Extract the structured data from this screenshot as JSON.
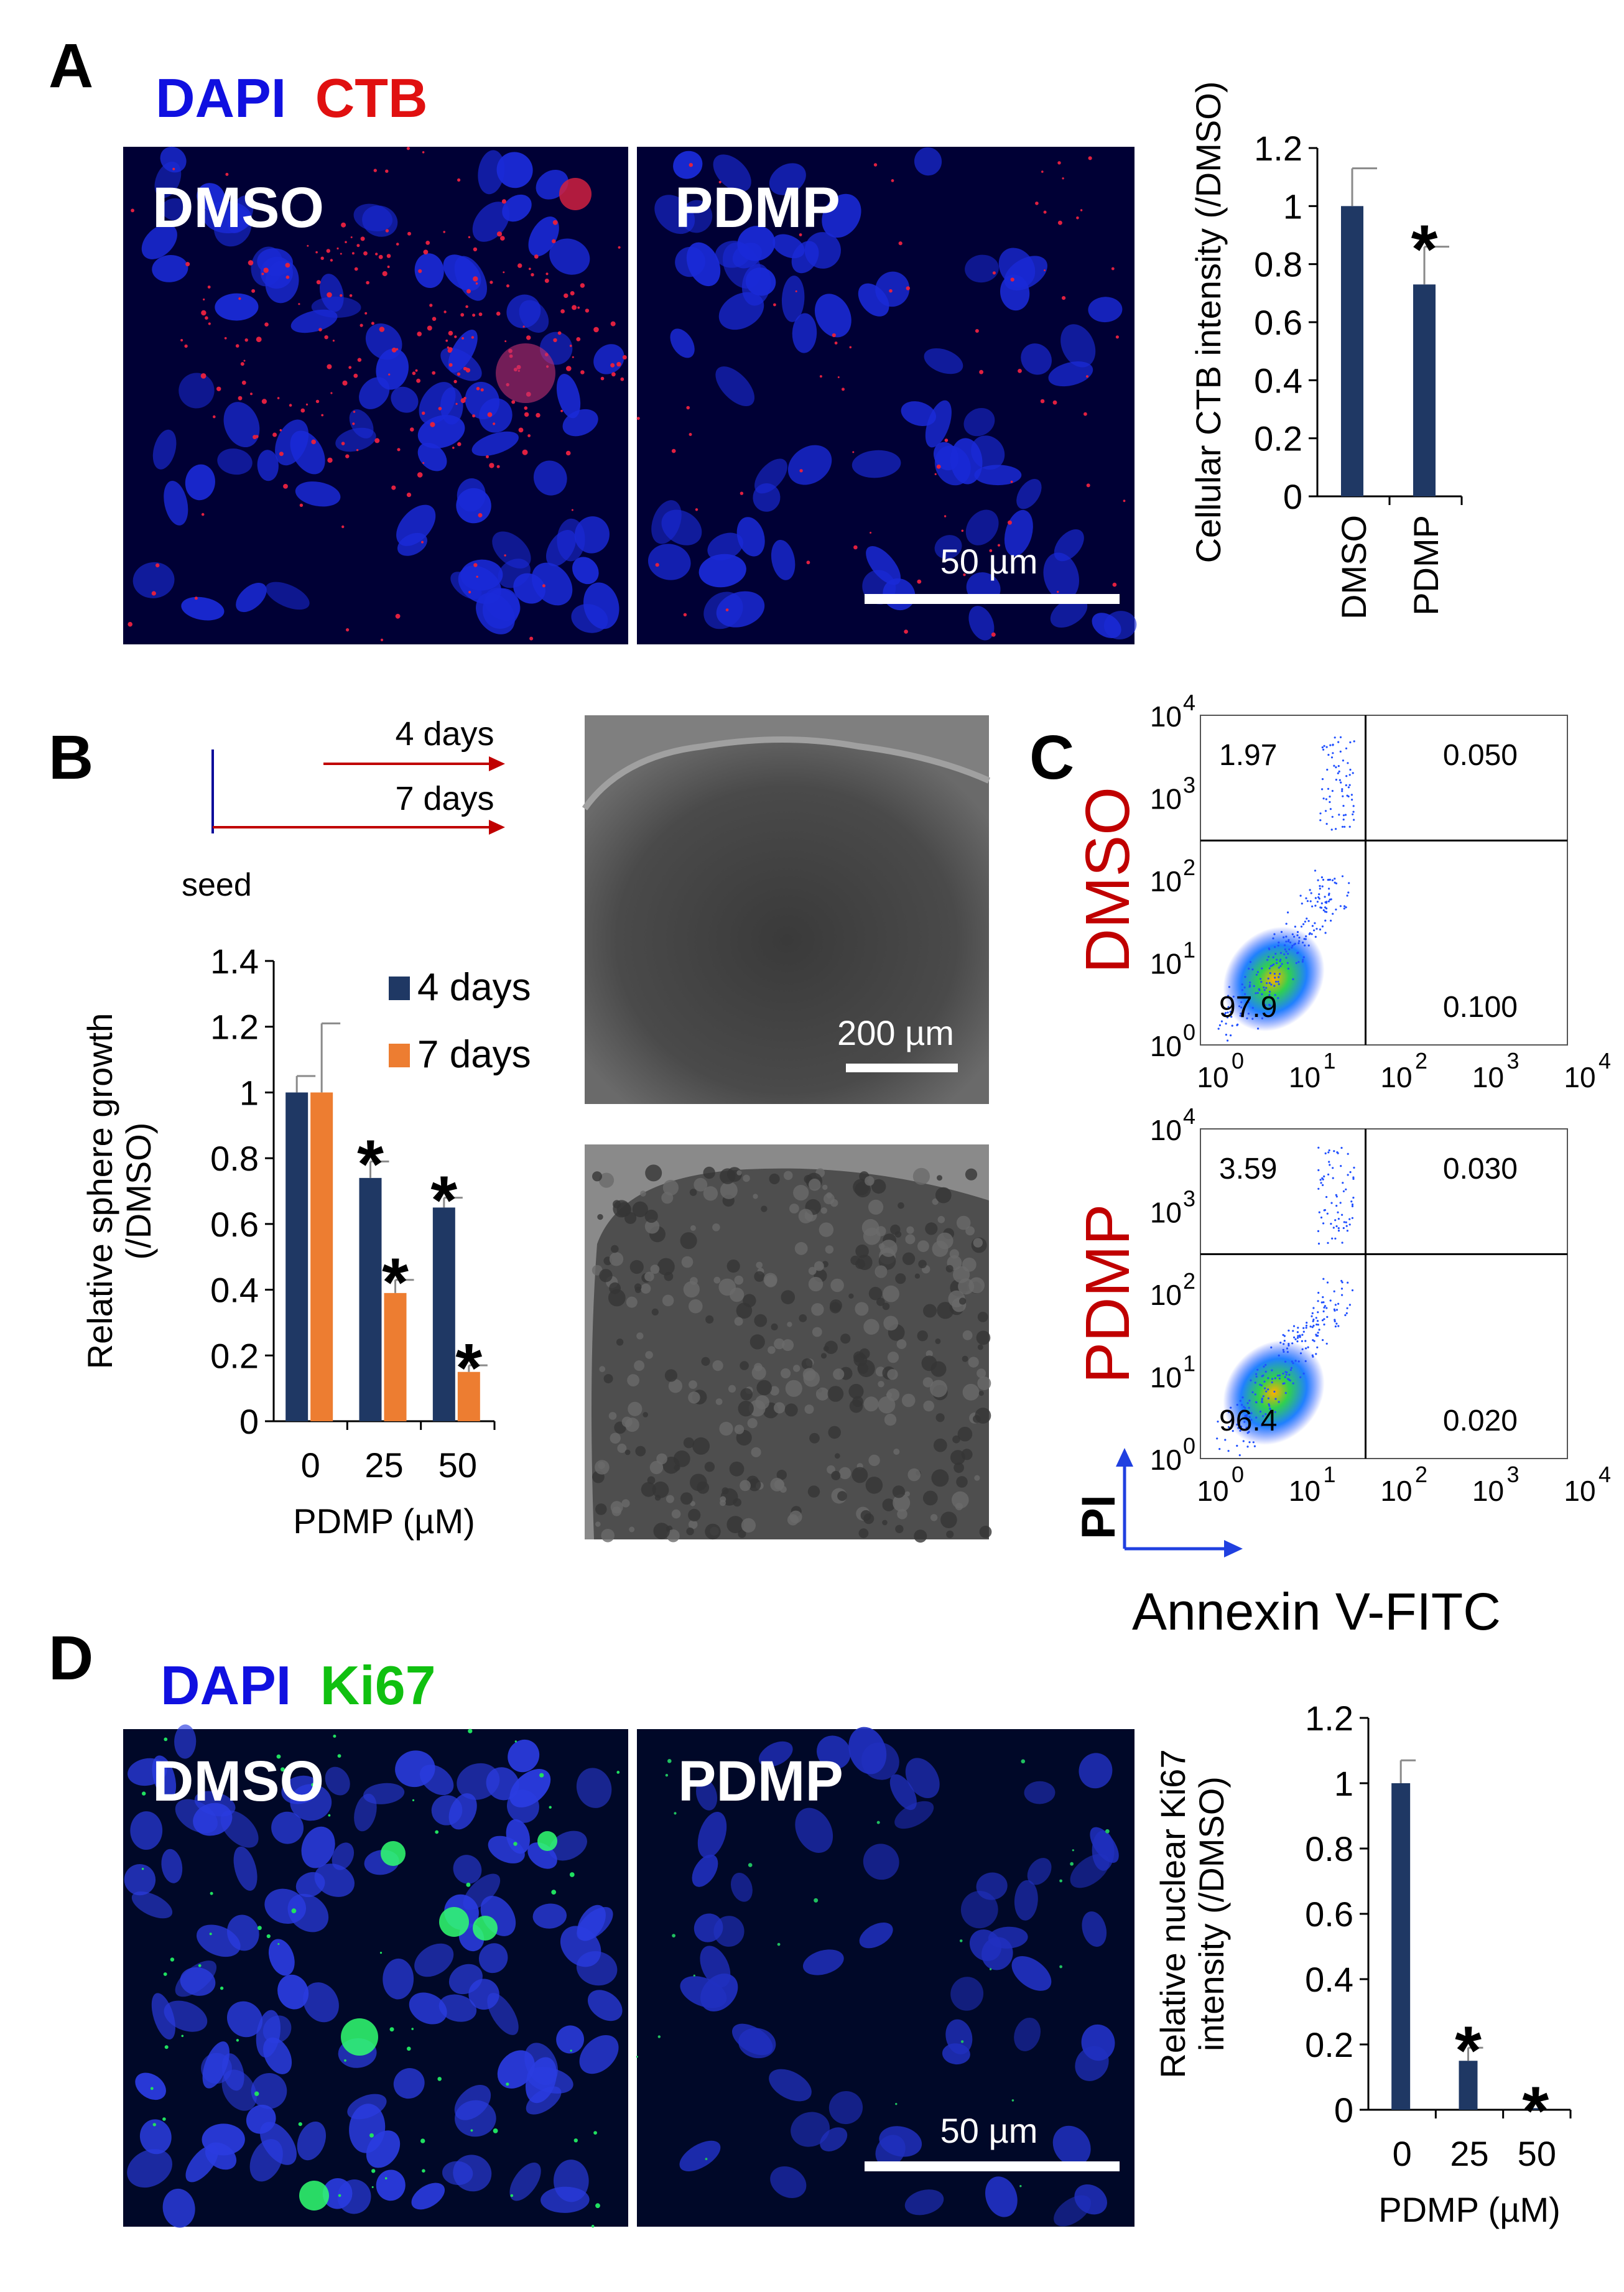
{
  "panels": {
    "A": {
      "letter": "A",
      "stain_1": "DAPI",
      "stain_2": "CTB",
      "stain_1_color": "#1010e0",
      "stain_2_color": "#e01010",
      "image_1_label": "DMSO",
      "image_2_label": "PDMP",
      "scale_bar": "50 µm"
    },
    "B": {
      "letter": "B",
      "timeline": {
        "label_4": "4 days",
        "label_7": "7 days",
        "seed": "seed"
      },
      "image_scale_bar": "200 µm"
    },
    "C": {
      "letter": "C",
      "rows": [
        {
          "label": "DMSO",
          "q_ul": "1.97",
          "q_ur": "0.050",
          "q_ll": "97.9",
          "q_lr": "0.100"
        },
        {
          "label": "PDMP",
          "q_ul": "3.59",
          "q_ur": "0.030",
          "q_ll": "96.4",
          "q_lr": "0.020"
        }
      ],
      "axis_y": "PI",
      "axis_x": "Annexin V-FITC",
      "row_label_color": "#c00000",
      "ticks": {
        "base": "10",
        "exps": [
          "0",
          "1",
          "2",
          "3",
          "4"
        ]
      }
    },
    "D": {
      "letter": "D",
      "stain_1": "DAPI",
      "stain_2": "Ki67",
      "stain_1_color": "#1010e0",
      "stain_2_color": "#10c010",
      "image_1_label": "DMSO",
      "image_2_label": "PDMP",
      "scale_bar": "50 µm"
    }
  },
  "chart_data": [
    {
      "id": "A",
      "type": "bar",
      "categories": [
        "DMSO",
        "PDMP"
      ],
      "values": [
        1.0,
        0.73
      ],
      "errors": [
        0.13,
        0.13
      ],
      "significance": [
        "",
        "*"
      ],
      "ylabel": "Cellular CTB intensity (/DMSO)",
      "ylim": [
        0,
        1.2
      ],
      "yticks": [
        "0",
        "0.2",
        "0.4",
        "0.6",
        "0.8",
        "1",
        "1.2"
      ],
      "color": "#1f3864"
    },
    {
      "id": "B",
      "type": "bar",
      "categories": [
        "0",
        "25",
        "50"
      ],
      "series": [
        {
          "name": "4 days",
          "values": [
            1.0,
            0.74,
            0.65
          ],
          "errors": [
            0.05,
            0.05,
            0.03
          ],
          "significance": [
            "",
            "*",
            "*"
          ],
          "color": "#1f3864"
        },
        {
          "name": "7 days",
          "values": [
            1.0,
            0.39,
            0.15
          ],
          "errors": [
            0.21,
            0.04,
            0.02
          ],
          "significance": [
            "",
            "*",
            "*"
          ],
          "color": "#ed7d31"
        }
      ],
      "xlabel": "PDMP (µM)",
      "ylabel_1": "Relative sphere growth",
      "ylabel_2": "(/DMSO)",
      "ylim": [
        0,
        1.4
      ],
      "yticks": [
        "0",
        "0.2",
        "0.4",
        "0.6",
        "0.8",
        "1",
        "1.2",
        "1.4"
      ],
      "legend": "top-right"
    },
    {
      "id": "D",
      "type": "bar",
      "categories": [
        "0",
        "25",
        "50"
      ],
      "values": [
        1.0,
        0.15,
        0.005
      ],
      "errors": [
        0.07,
        0.04,
        0.0
      ],
      "significance": [
        "",
        "*",
        "*"
      ],
      "xlabel": "PDMP (µM)",
      "ylabel_1": "Relative nuclear Ki67",
      "ylabel_2": "intensity (/DMSO)",
      "ylim": [
        0,
        1.2
      ],
      "yticks": [
        "0",
        "0.2",
        "0.4",
        "0.6",
        "0.8",
        "1",
        "1.2"
      ],
      "color": "#1f3864"
    }
  ]
}
